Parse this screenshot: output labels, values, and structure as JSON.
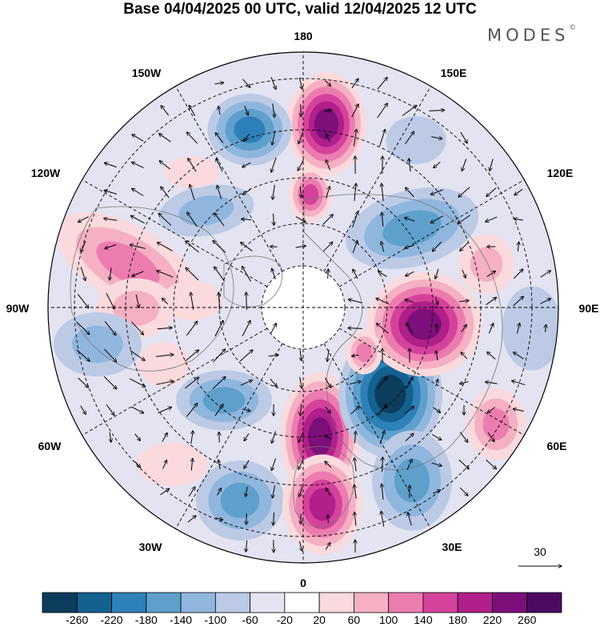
{
  "title": "Base 04/04/2025 00 UTC, valid 12/04/2025 12 UTC",
  "brand": "MODES",
  "brand_mark": "©",
  "longitude_labels": {
    "lon_180": "180",
    "lon_150e": "150E",
    "lon_120e": "120E",
    "lon_90e": "90E",
    "lon_60e": "60E",
    "lon_30e": "30E",
    "lon_0": "0",
    "lon_30w": "30W",
    "lon_60w": "60W",
    "lon_90w": "90W",
    "lon_120w": "120W",
    "lon_150w": "150W"
  },
  "reference_vector": {
    "value": "30"
  },
  "colorbar": {
    "ticks": [
      "-260",
      "-220",
      "-180",
      "-140",
      "-100",
      "-60",
      "-20",
      "20",
      "60",
      "100",
      "140",
      "180",
      "220",
      "260"
    ],
    "colors": [
      "#0d3d5c",
      "#14608f",
      "#2e80b8",
      "#5e9fcc",
      "#8fb6dd",
      "#bccae6",
      "#e3e3f1",
      "#ffffff",
      "#fadadd",
      "#f5b0c3",
      "#ec7cb0",
      "#d5429c",
      "#b01f8a",
      "#7c0f7a",
      "#4d0a63"
    ]
  },
  "projection": "north polar stereographic",
  "field": "anomaly shading with wind vectors"
}
